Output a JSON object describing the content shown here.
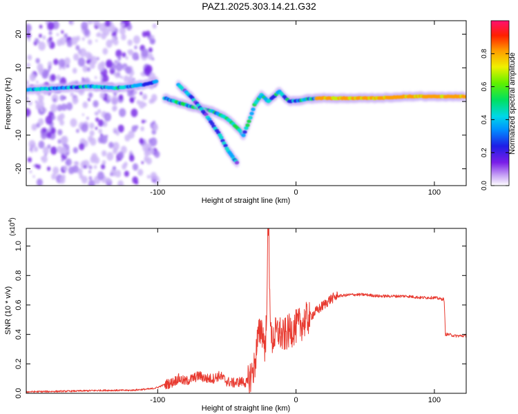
{
  "title": "PAZ1.2025.303.14.21.G32",
  "colors": {
    "snr_line": "#e83a30",
    "frame": "#000000",
    "speckle": "#8a55e6",
    "ridge": "#7a2be0"
  },
  "chart_data": [
    {
      "type": "heatmap",
      "name": "spectrogram",
      "xlabel": "Height of straight line (km)",
      "ylabel": "Frequency (Hz)",
      "xlim": [
        -195,
        123
      ],
      "ylim": [
        -25,
        24
      ],
      "xticks": [
        -100,
        0,
        100
      ],
      "xtick_labels": [
        "-100",
        "0",
        "100"
      ],
      "yticks": [
        -20,
        -10,
        0,
        10,
        20
      ],
      "ytick_labels": [
        "-20",
        "-10",
        "0",
        "10",
        "20"
      ],
      "noise_region_x": [
        -195,
        -100
      ],
      "ridges": [
        {
          "name": "main-ridge",
          "points": [
            [
              -195,
              3.5
            ],
            [
              -170,
              4
            ],
            [
              -150,
              4.5
            ],
            [
              -130,
              4
            ],
            [
              -110,
              5
            ],
            [
              -100,
              6
            ]
          ]
        },
        {
          "name": "descending-branch",
          "points": [
            [
              -95,
              1
            ],
            [
              -80,
              -1
            ],
            [
              -70,
              -2
            ],
            [
              -60,
              -3
            ],
            [
              -50,
              -5
            ],
            [
              -42,
              -8
            ],
            [
              -38,
              -10
            ]
          ]
        },
        {
          "name": "steep-branch",
          "points": [
            [
              -85,
              5
            ],
            [
              -75,
              1
            ],
            [
              -65,
              -4
            ],
            [
              -55,
              -10
            ],
            [
              -50,
              -14
            ],
            [
              -45,
              -17
            ],
            [
              -42,
              -18.5
            ]
          ]
        },
        {
          "name": "recovery-branch",
          "points": [
            [
              -38,
              -10
            ],
            [
              -34,
              -6
            ],
            [
              -30,
              -1
            ],
            [
              -25,
              2
            ],
            [
              -20,
              0
            ],
            [
              -12,
              3
            ],
            [
              -5,
              0
            ],
            [
              5,
              0.5
            ],
            [
              15,
              1
            ]
          ]
        },
        {
          "name": "strong-band",
          "points": [
            [
              15,
              1
            ],
            [
              40,
              1
            ],
            [
              60,
              1
            ],
            [
              80,
              1.5
            ],
            [
              100,
              1.5
            ],
            [
              123,
              1.5
            ]
          ]
        }
      ],
      "colorbar": {
        "label": "Normalized spectral amplitude",
        "range": [
          0,
          1
        ],
        "ticks": [
          0.0,
          0.2,
          0.4,
          0.6,
          0.8
        ],
        "tick_labels": [
          "0.0",
          "0.2",
          "0.4",
          "0.6",
          "0.8"
        ]
      }
    },
    {
      "type": "line",
      "name": "snr",
      "xlabel": "Height of straight line (km)",
      "ylabel": "SNR (10 * v/v)",
      "scale_label": "(x10",
      "scale_exponent": "4",
      "xlim": [
        -195,
        123
      ],
      "ylim": [
        0,
        1.12
      ],
      "xticks": [
        -100,
        0,
        100
      ],
      "xtick_labels": [
        "-100",
        "0",
        "100"
      ],
      "yticks": [
        0.0,
        0.2,
        0.4,
        0.6,
        0.8,
        1.0
      ],
      "ytick_labels": [
        "0.0",
        "0.2",
        "0.4",
        "0.6",
        "0.8",
        "1.0"
      ],
      "series": [
        {
          "name": "SNR",
          "x": [
            -195,
            -180,
            -160,
            -140,
            -120,
            -105,
            -100,
            -95,
            -90,
            -85,
            -80,
            -75,
            -70,
            -65,
            -60,
            -55,
            -50,
            -45,
            -40,
            -35,
            -30,
            -28,
            -25,
            -22,
            -20,
            -18,
            -15,
            -12,
            -10,
            -5,
            0,
            5,
            10,
            15,
            20,
            25,
            30,
            40,
            50,
            60,
            70,
            80,
            90,
            100,
            105,
            107,
            108,
            110,
            115,
            123
          ],
          "y": [
            0.01,
            0.012,
            0.015,
            0.02,
            0.02,
            0.03,
            0.04,
            0.06,
            0.07,
            0.1,
            0.08,
            0.1,
            0.12,
            0.1,
            0.1,
            0.12,
            0.08,
            0.07,
            0.08,
            0.07,
            0.18,
            0.35,
            0.45,
            0.3,
            1.12,
            0.35,
            0.4,
            0.42,
            0.38,
            0.42,
            0.45,
            0.48,
            0.52,
            0.56,
            0.6,
            0.64,
            0.66,
            0.67,
            0.67,
            0.66,
            0.66,
            0.66,
            0.65,
            0.65,
            0.64,
            0.64,
            0.4,
            0.4,
            0.39,
            0.39
          ]
        }
      ]
    }
  ]
}
